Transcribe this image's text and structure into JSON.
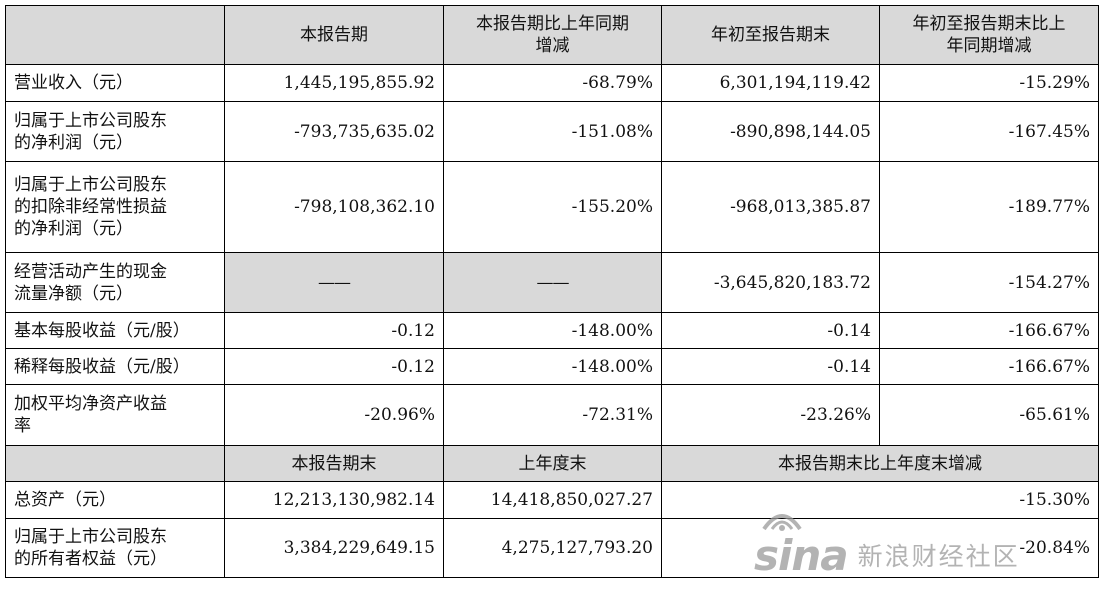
{
  "header": {
    "blank": "",
    "col1": "本报告期",
    "col2_line1": "本报告期比上年同期",
    "col2_line2": "增减",
    "col3": "年初至报告期末",
    "col4_line1": "年初至报告期末比上",
    "col4_line2": "年同期增减"
  },
  "rows": [
    {
      "label": [
        "营业收入（元）"
      ],
      "values": [
        "1,445,195,855.92",
        "-68.79%",
        "6,301,194,119.42",
        "-15.29%"
      ]
    },
    {
      "label": [
        "归属于上市公司股东",
        "的净利润（元）"
      ],
      "values": [
        "-793,735,635.02",
        "-151.08%",
        "-890,898,144.05",
        "-167.45%"
      ]
    },
    {
      "label": [
        "归属于上市公司股东",
        "的扣除非经常性损益",
        "的净利润（元）"
      ],
      "values": [
        "-798,108,362.10",
        "-155.20%",
        "-968,013,385.87",
        "-189.77%"
      ]
    },
    {
      "label": [
        "经营活动产生的现金",
        "流量净额（元）"
      ],
      "values": [
        "——",
        "——",
        "-3,645,820,183.72",
        "-154.27%"
      ]
    },
    {
      "label": [
        "基本每股收益（元/股）"
      ],
      "values": [
        "-0.12",
        "-148.00%",
        "-0.14",
        "-166.67%"
      ]
    },
    {
      "label": [
        "稀释每股收益（元/股）"
      ],
      "values": [
        "-0.12",
        "-148.00%",
        "-0.14",
        "-166.67%"
      ]
    },
    {
      "label": [
        "加权平均净资产收益",
        "率"
      ],
      "values": [
        "-20.96%",
        "-72.31%",
        "-23.26%",
        "-65.61%"
      ]
    }
  ],
  "header2": {
    "col1": "本报告期末",
    "col2": "上年度末",
    "col3": "本报告期末比上年度末增减"
  },
  "rows2": [
    {
      "label": [
        "总资产（元）"
      ],
      "values": [
        "12,213,130,982.14",
        "14,418,850,027.27",
        "-15.30%"
      ]
    },
    {
      "label": [
        "归属于上市公司股东",
        "的所有者权益（元）"
      ],
      "values": [
        "3,384,229,649.15",
        "4,275,127,793.20",
        "-20.84%"
      ]
    }
  ],
  "watermark": {
    "logo": "sina",
    "text": "新浪财经社区",
    "icon": "sina-eye-logo"
  }
}
